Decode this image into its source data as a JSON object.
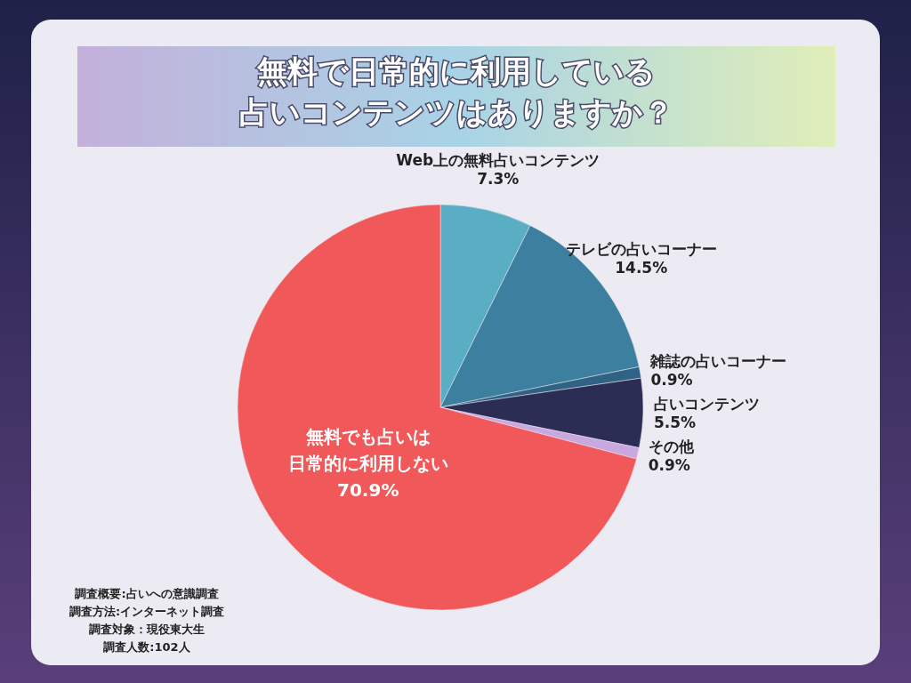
{
  "chart_data": {
    "type": "pie",
    "title": "無料で日常的に利用している占いコンテンツはありますか？",
    "categories": [
      "Web上の無料占いコンテンツ",
      "テレビの占いコーナー",
      "雑誌の占いコーナー",
      "占いコンテンツ",
      "その他",
      "無料でも占いは日常的に利用しない"
    ],
    "values": [
      7.3,
      14.5,
      0.9,
      5.5,
      0.9,
      70.9
    ],
    "colors": [
      "#5aaec3",
      "#3d7f9e",
      "#2f6285",
      "#2c2d55",
      "#c9a8e0",
      "#f0585a"
    ],
    "value_labels": [
      "7.3%",
      "14.5%",
      "0.9%",
      "5.5%",
      "0.9%",
      "70.9%"
    ],
    "annotations": [
      "調査概要:占いへの意識調査",
      "調査方法:インターネット調査",
      "調査対象：現役東大生",
      "調査人数:102人"
    ]
  }
}
